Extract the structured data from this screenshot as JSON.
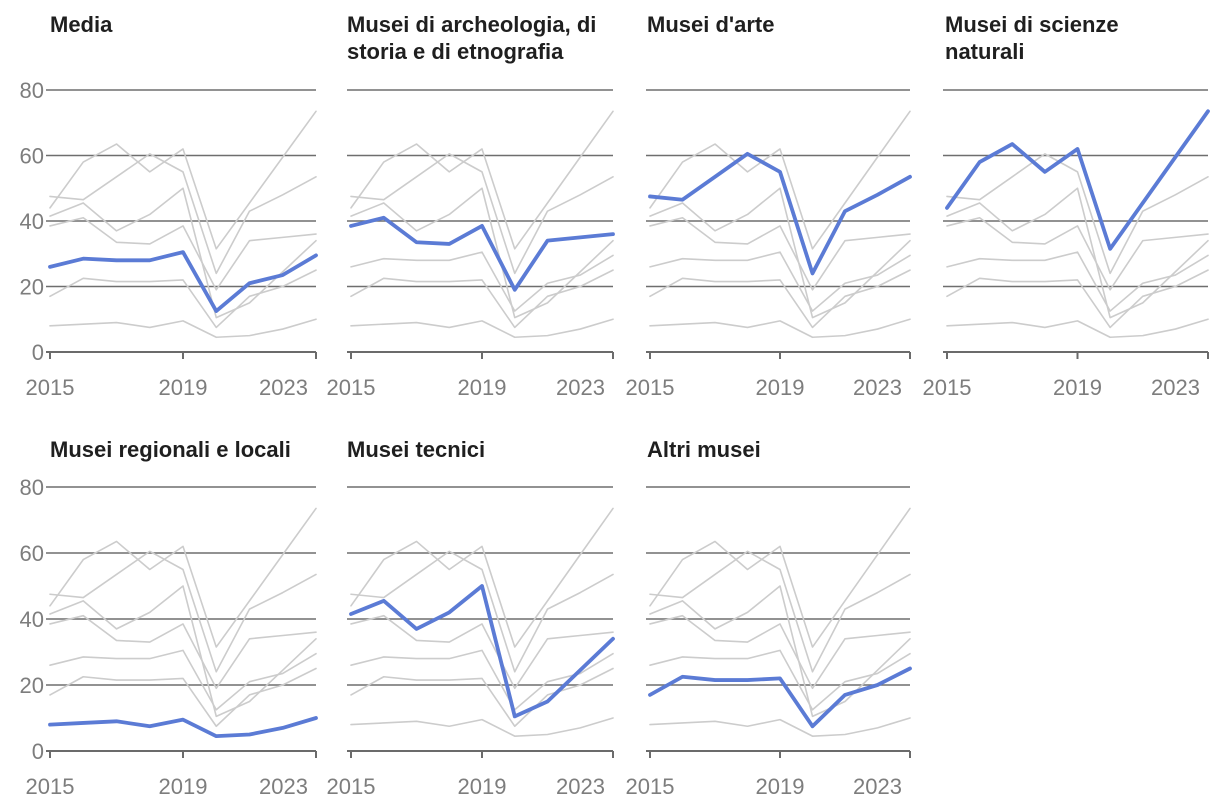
{
  "chart_data": {
    "type": "line",
    "layout": "small-multiples",
    "grid": "horizontal",
    "x": [
      2015,
      2016,
      2017,
      2018,
      2019,
      2020,
      2021,
      2022,
      2023
    ],
    "x_tick_years": [
      2015,
      2019,
      2023
    ],
    "x_tick_labels": [
      "2015",
      "2019",
      "2023"
    ],
    "y_ticks": [
      0,
      20,
      40,
      60,
      80
    ],
    "y_tick_labels": [
      "0",
      "20",
      "40",
      "60",
      "80"
    ],
    "ylim": [
      0,
      80
    ],
    "series": [
      {
        "key": "media",
        "name": "Media",
        "values": [
          26,
          28.5,
          28,
          28,
          30.5,
          12.5,
          21,
          23.5,
          29.5
        ]
      },
      {
        "key": "archeologia",
        "name": "Musei di archeologia, di storia e di etnografia",
        "values": [
          38.5,
          41,
          33.5,
          33,
          38.5,
          19,
          34,
          35,
          36
        ]
      },
      {
        "key": "arte",
        "name": "Musei d'arte",
        "values": [
          47.5,
          46.5,
          53.5,
          60.5,
          55,
          24,
          43,
          48,
          53.5
        ]
      },
      {
        "key": "scienze",
        "name": "Musei di scienze naturali",
        "values": [
          44,
          58,
          63.5,
          55,
          62,
          31.5,
          45.5,
          59.5,
          73.5
        ]
      },
      {
        "key": "regionali",
        "name": "Musei regionali e locali",
        "values": [
          8,
          8.5,
          9,
          7.5,
          9.5,
          4.5,
          5,
          7,
          10
        ]
      },
      {
        "key": "tecnici",
        "name": "Musei tecnici",
        "values": [
          41.5,
          45.5,
          37,
          42,
          50,
          10.5,
          15,
          24.5,
          34
        ]
      },
      {
        "key": "altri",
        "name": "Altri musei",
        "values": [
          17,
          22.5,
          21.5,
          21.5,
          22,
          7.5,
          17,
          20,
          25
        ]
      }
    ],
    "panels": [
      {
        "title": "Media",
        "highlight": "media"
      },
      {
        "title": "Musei di archeologia, di storia e di etnografia",
        "highlight": "archeologia"
      },
      {
        "title": "Musei d'arte",
        "highlight": "arte"
      },
      {
        "title": "Musei di scienze naturali",
        "highlight": "scienze"
      },
      {
        "title": "Musei regionali e locali",
        "highlight": "regionali"
      },
      {
        "title": "Musei tecnici",
        "highlight": "tecnici"
      },
      {
        "title": "Altri musei",
        "highlight": "altri"
      }
    ],
    "colors": {
      "highlight": "#5b7bd5",
      "other_series": "#cccccc",
      "grid": "#6e6e6e",
      "axis": "#6b6b6b",
      "tick_label": "#7d7d7d",
      "title": "#1f1f1f",
      "background": "#ffffff"
    }
  }
}
